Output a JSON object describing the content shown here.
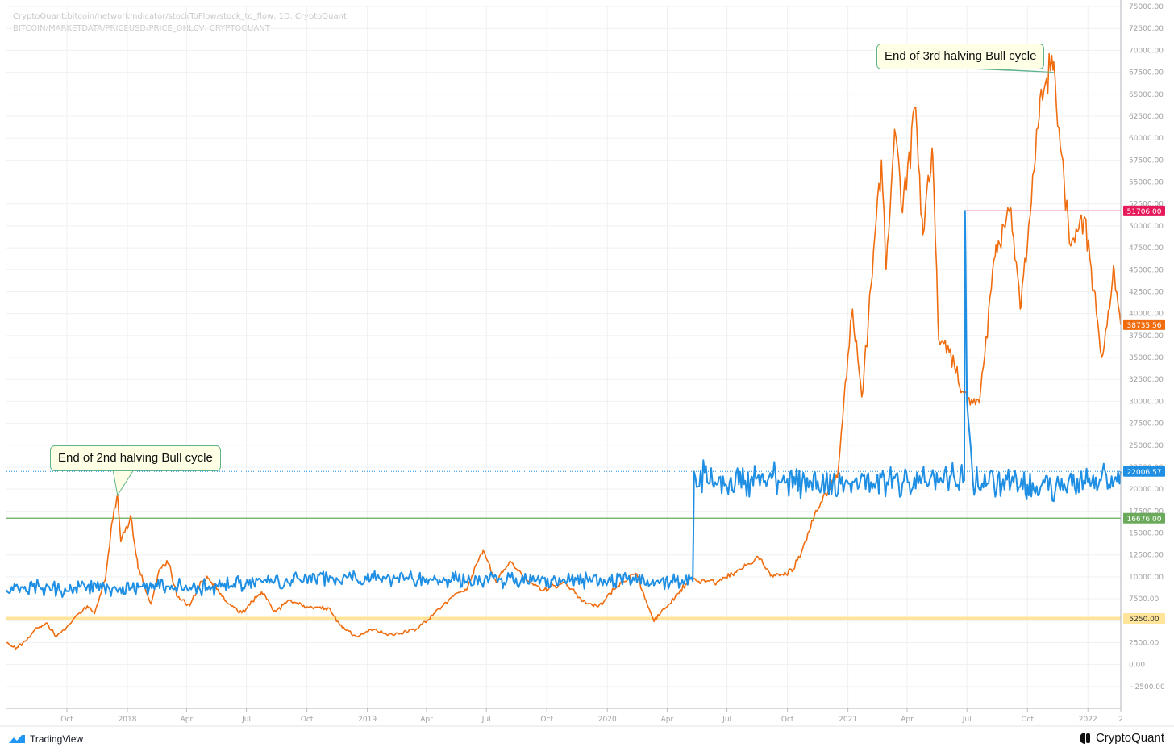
{
  "header": {
    "line1": "CryptoQuant:bitcoin/networkIndicator/stockToFlow/stock_to_flow, 1D, CryptoQuant",
    "line2": "BITCOIN/MARKETDATA/PRICEUSD/PRICE_OHLCV, CRYPTOQUANT"
  },
  "footer": {
    "left": "TradingView",
    "right": "CryptoQuant"
  },
  "colors": {
    "price": "#f06d0f",
    "s2f": "#1f8fe3",
    "red": "#e6195a",
    "green": "#6aaa5a",
    "yellow": "#ffe49a",
    "grid": "#eef0f3",
    "axis_text": "#a0a0a0"
  },
  "chart_data": {
    "type": "line",
    "x_range": [
      "2017-07-01",
      "2022-02-20"
    ],
    "y_range": [
      -5000,
      75000
    ],
    "y_ticks": [
      -2500,
      0,
      2500,
      5000,
      7500,
      10000,
      12500,
      15000,
      17500,
      20000,
      22500,
      25000,
      27500,
      30000,
      32500,
      35000,
      37500,
      40000,
      42500,
      45000,
      47500,
      50000,
      52500,
      55000,
      57500,
      60000,
      62500,
      65000,
      67500,
      70000,
      72500,
      75000
    ],
    "y_tick_labels": [
      "−2500.00",
      "0.00",
      "2500.00",
      "5000.00",
      "7500.00",
      "10000.00",
      "12500.00",
      "15000.00",
      "17500.00",
      "20000.00",
      "22500.00",
      "25000.00",
      "27500.00",
      "30000.00",
      "32500.00",
      "35000.00",
      "37500.00",
      "40000.00",
      "42500.00",
      "45000.00",
      "47500.00",
      "50000.00",
      "52500.00",
      "55000.00",
      "57500.00",
      "60000.00",
      "62500.00",
      "65000.00",
      "67500.00",
      "70000.00",
      "72500.00",
      "75000.00"
    ],
    "x_ticks": [
      {
        "date": "2017-10-01",
        "label": "Oct"
      },
      {
        "date": "2018-01-01",
        "label": "2018"
      },
      {
        "date": "2018-04-01",
        "label": "Apr"
      },
      {
        "date": "2018-07-01",
        "label": "Jul"
      },
      {
        "date": "2018-10-01",
        "label": "Oct"
      },
      {
        "date": "2019-01-01",
        "label": "2019"
      },
      {
        "date": "2019-04-01",
        "label": "Apr"
      },
      {
        "date": "2019-07-01",
        "label": "Jul"
      },
      {
        "date": "2019-10-01",
        "label": "Oct"
      },
      {
        "date": "2020-01-01",
        "label": "2020"
      },
      {
        "date": "2020-04-01",
        "label": "Apr"
      },
      {
        "date": "2020-07-01",
        "label": "Jul"
      },
      {
        "date": "2020-10-01",
        "label": "Oct"
      },
      {
        "date": "2021-01-01",
        "label": "2021"
      },
      {
        "date": "2021-04-01",
        "label": "Apr"
      },
      {
        "date": "2021-07-01",
        "label": "Jul"
      },
      {
        "date": "2021-10-01",
        "label": "Oct"
      },
      {
        "date": "2022-01-01",
        "label": "2022"
      },
      {
        "date": "2022-02-20",
        "label": "2"
      }
    ],
    "series": [
      {
        "name": "",
        "color": "#f06d0f",
        "points": [
          [
            "2017-07-01",
            2500
          ],
          [
            "2017-07-16",
            1900
          ],
          [
            "2017-08-01",
            2800
          ],
          [
            "2017-08-15",
            4200
          ],
          [
            "2017-09-01",
            4700
          ],
          [
            "2017-09-14",
            3200
          ],
          [
            "2017-10-01",
            4300
          ],
          [
            "2017-10-20",
            5900
          ],
          [
            "2017-11-01",
            6700
          ],
          [
            "2017-11-12",
            5800
          ],
          [
            "2017-11-29",
            10000
          ],
          [
            "2017-12-08",
            16000
          ],
          [
            "2017-12-17",
            19300
          ],
          [
            "2017-12-22",
            14000
          ],
          [
            "2018-01-06",
            17000
          ],
          [
            "2018-01-17",
            11000
          ],
          [
            "2018-02-06",
            6900
          ],
          [
            "2018-02-20",
            11000
          ],
          [
            "2018-03-05",
            11500
          ],
          [
            "2018-03-18",
            7700
          ],
          [
            "2018-04-06",
            6700
          ],
          [
            "2018-04-24",
            9500
          ],
          [
            "2018-05-05",
            9800
          ],
          [
            "2018-05-29",
            7300
          ],
          [
            "2018-06-24",
            5900
          ],
          [
            "2018-07-24",
            8300
          ],
          [
            "2018-08-14",
            6000
          ],
          [
            "2018-09-04",
            7300
          ],
          [
            "2018-10-01",
            6600
          ],
          [
            "2018-11-05",
            6400
          ],
          [
            "2018-11-20",
            4500
          ],
          [
            "2018-12-15",
            3200
          ],
          [
            "2019-01-06",
            4000
          ],
          [
            "2019-02-08",
            3400
          ],
          [
            "2019-03-15",
            3900
          ],
          [
            "2019-04-02",
            5000
          ],
          [
            "2019-05-14",
            8000
          ],
          [
            "2019-06-01",
            8500
          ],
          [
            "2019-06-26",
            13000
          ],
          [
            "2019-07-16",
            9400
          ],
          [
            "2019-08-06",
            11800
          ],
          [
            "2019-09-01",
            9600
          ],
          [
            "2019-09-25",
            8400
          ],
          [
            "2019-10-26",
            9400
          ],
          [
            "2019-11-25",
            7200
          ],
          [
            "2019-12-18",
            6600
          ],
          [
            "2020-01-15",
            8800
          ],
          [
            "2020-02-13",
            10400
          ],
          [
            "2020-03-12",
            4900
          ],
          [
            "2020-04-01",
            6600
          ],
          [
            "2020-05-07",
            9800
          ],
          [
            "2020-06-15",
            9300
          ],
          [
            "2020-07-26",
            11000
          ],
          [
            "2020-08-17",
            12300
          ],
          [
            "2020-09-05",
            10100
          ],
          [
            "2020-10-08",
            10600
          ],
          [
            "2020-11-05",
            15500
          ],
          [
            "2020-11-24",
            19100
          ],
          [
            "2020-12-16",
            21300
          ],
          [
            "2021-01-08",
            40500
          ],
          [
            "2021-01-22",
            30500
          ],
          [
            "2021-02-21",
            57500
          ],
          [
            "2021-02-28",
            45000
          ],
          [
            "2021-03-13",
            61000
          ],
          [
            "2021-03-25",
            51500
          ],
          [
            "2021-04-14",
            63500
          ],
          [
            "2021-04-25",
            49000
          ],
          [
            "2021-05-10",
            58000
          ],
          [
            "2021-05-19",
            37000
          ],
          [
            "2021-06-06",
            36000
          ],
          [
            "2021-06-22",
            31000
          ],
          [
            "2021-07-20",
            29800
          ],
          [
            "2021-08-14",
            47800
          ],
          [
            "2021-09-06",
            52000
          ],
          [
            "2021-09-21",
            40700
          ],
          [
            "2021-10-20",
            64500
          ],
          [
            "2021-11-10",
            68700
          ],
          [
            "2021-12-04",
            48000
          ],
          [
            "2021-12-27",
            51000
          ],
          [
            "2022-01-22",
            35000
          ],
          [
            "2022-02-10",
            45000
          ],
          [
            "2022-02-20",
            38735.56
          ]
        ]
      },
      {
        "name": "",
        "color": "#1f8fe3",
        "points": [
          [
            "2017-07-01",
            8500
          ],
          [
            "2017-08-15",
            8800
          ],
          [
            "2017-09-20",
            8400
          ],
          [
            "2017-11-01",
            8900
          ],
          [
            "2017-12-15",
            8600
          ],
          [
            "2018-02-15",
            8900
          ],
          [
            "2018-05-01",
            8800
          ],
          [
            "2018-08-01",
            9400
          ],
          [
            "2018-11-01",
            10000
          ],
          [
            "2019-01-15",
            9800
          ],
          [
            "2019-05-01",
            9700
          ],
          [
            "2019-08-01",
            9600
          ],
          [
            "2019-11-01",
            9500
          ],
          [
            "2020-02-01",
            9700
          ],
          [
            "2020-04-20",
            9300
          ],
          [
            "2020-05-10",
            9500
          ],
          [
            "2020-05-12",
            22000
          ],
          [
            "2020-06-15",
            20500
          ],
          [
            "2020-09-01",
            21000
          ],
          [
            "2020-12-01",
            20500
          ],
          [
            "2021-03-01",
            20800
          ],
          [
            "2021-06-01",
            21000
          ],
          [
            "2021-06-27",
            21000
          ],
          [
            "2021-06-28",
            51706
          ],
          [
            "2021-07-01",
            30000
          ],
          [
            "2021-07-10",
            21000
          ],
          [
            "2021-10-01",
            20500
          ],
          [
            "2022-01-01",
            20800
          ],
          [
            "2022-02-20",
            22006.57
          ]
        ]
      }
    ],
    "hlines": [
      {
        "value": 51706.0,
        "label": "51706.00",
        "color": "#e6195a"
      },
      {
        "value": 16676.0,
        "label": "16676.00",
        "color": "#6aaa5a"
      },
      {
        "value": 5250.0,
        "label": "5250.00",
        "color": "#ffe49a"
      }
    ],
    "last_values": [
      {
        "value": 38735.56,
        "label": "38735.56",
        "color": "#f06d0f"
      },
      {
        "value": 22006.57,
        "label": "22006.57",
        "color": "#1f8fe3"
      }
    ],
    "annotations": [
      {
        "text": "End of 2nd halving Bull cycle",
        "date": "2017-12-17",
        "value": 19300
      },
      {
        "text": "End of 3rd halving Bull cycle",
        "date": "2021-11-10",
        "value": 67500
      }
    ]
  }
}
